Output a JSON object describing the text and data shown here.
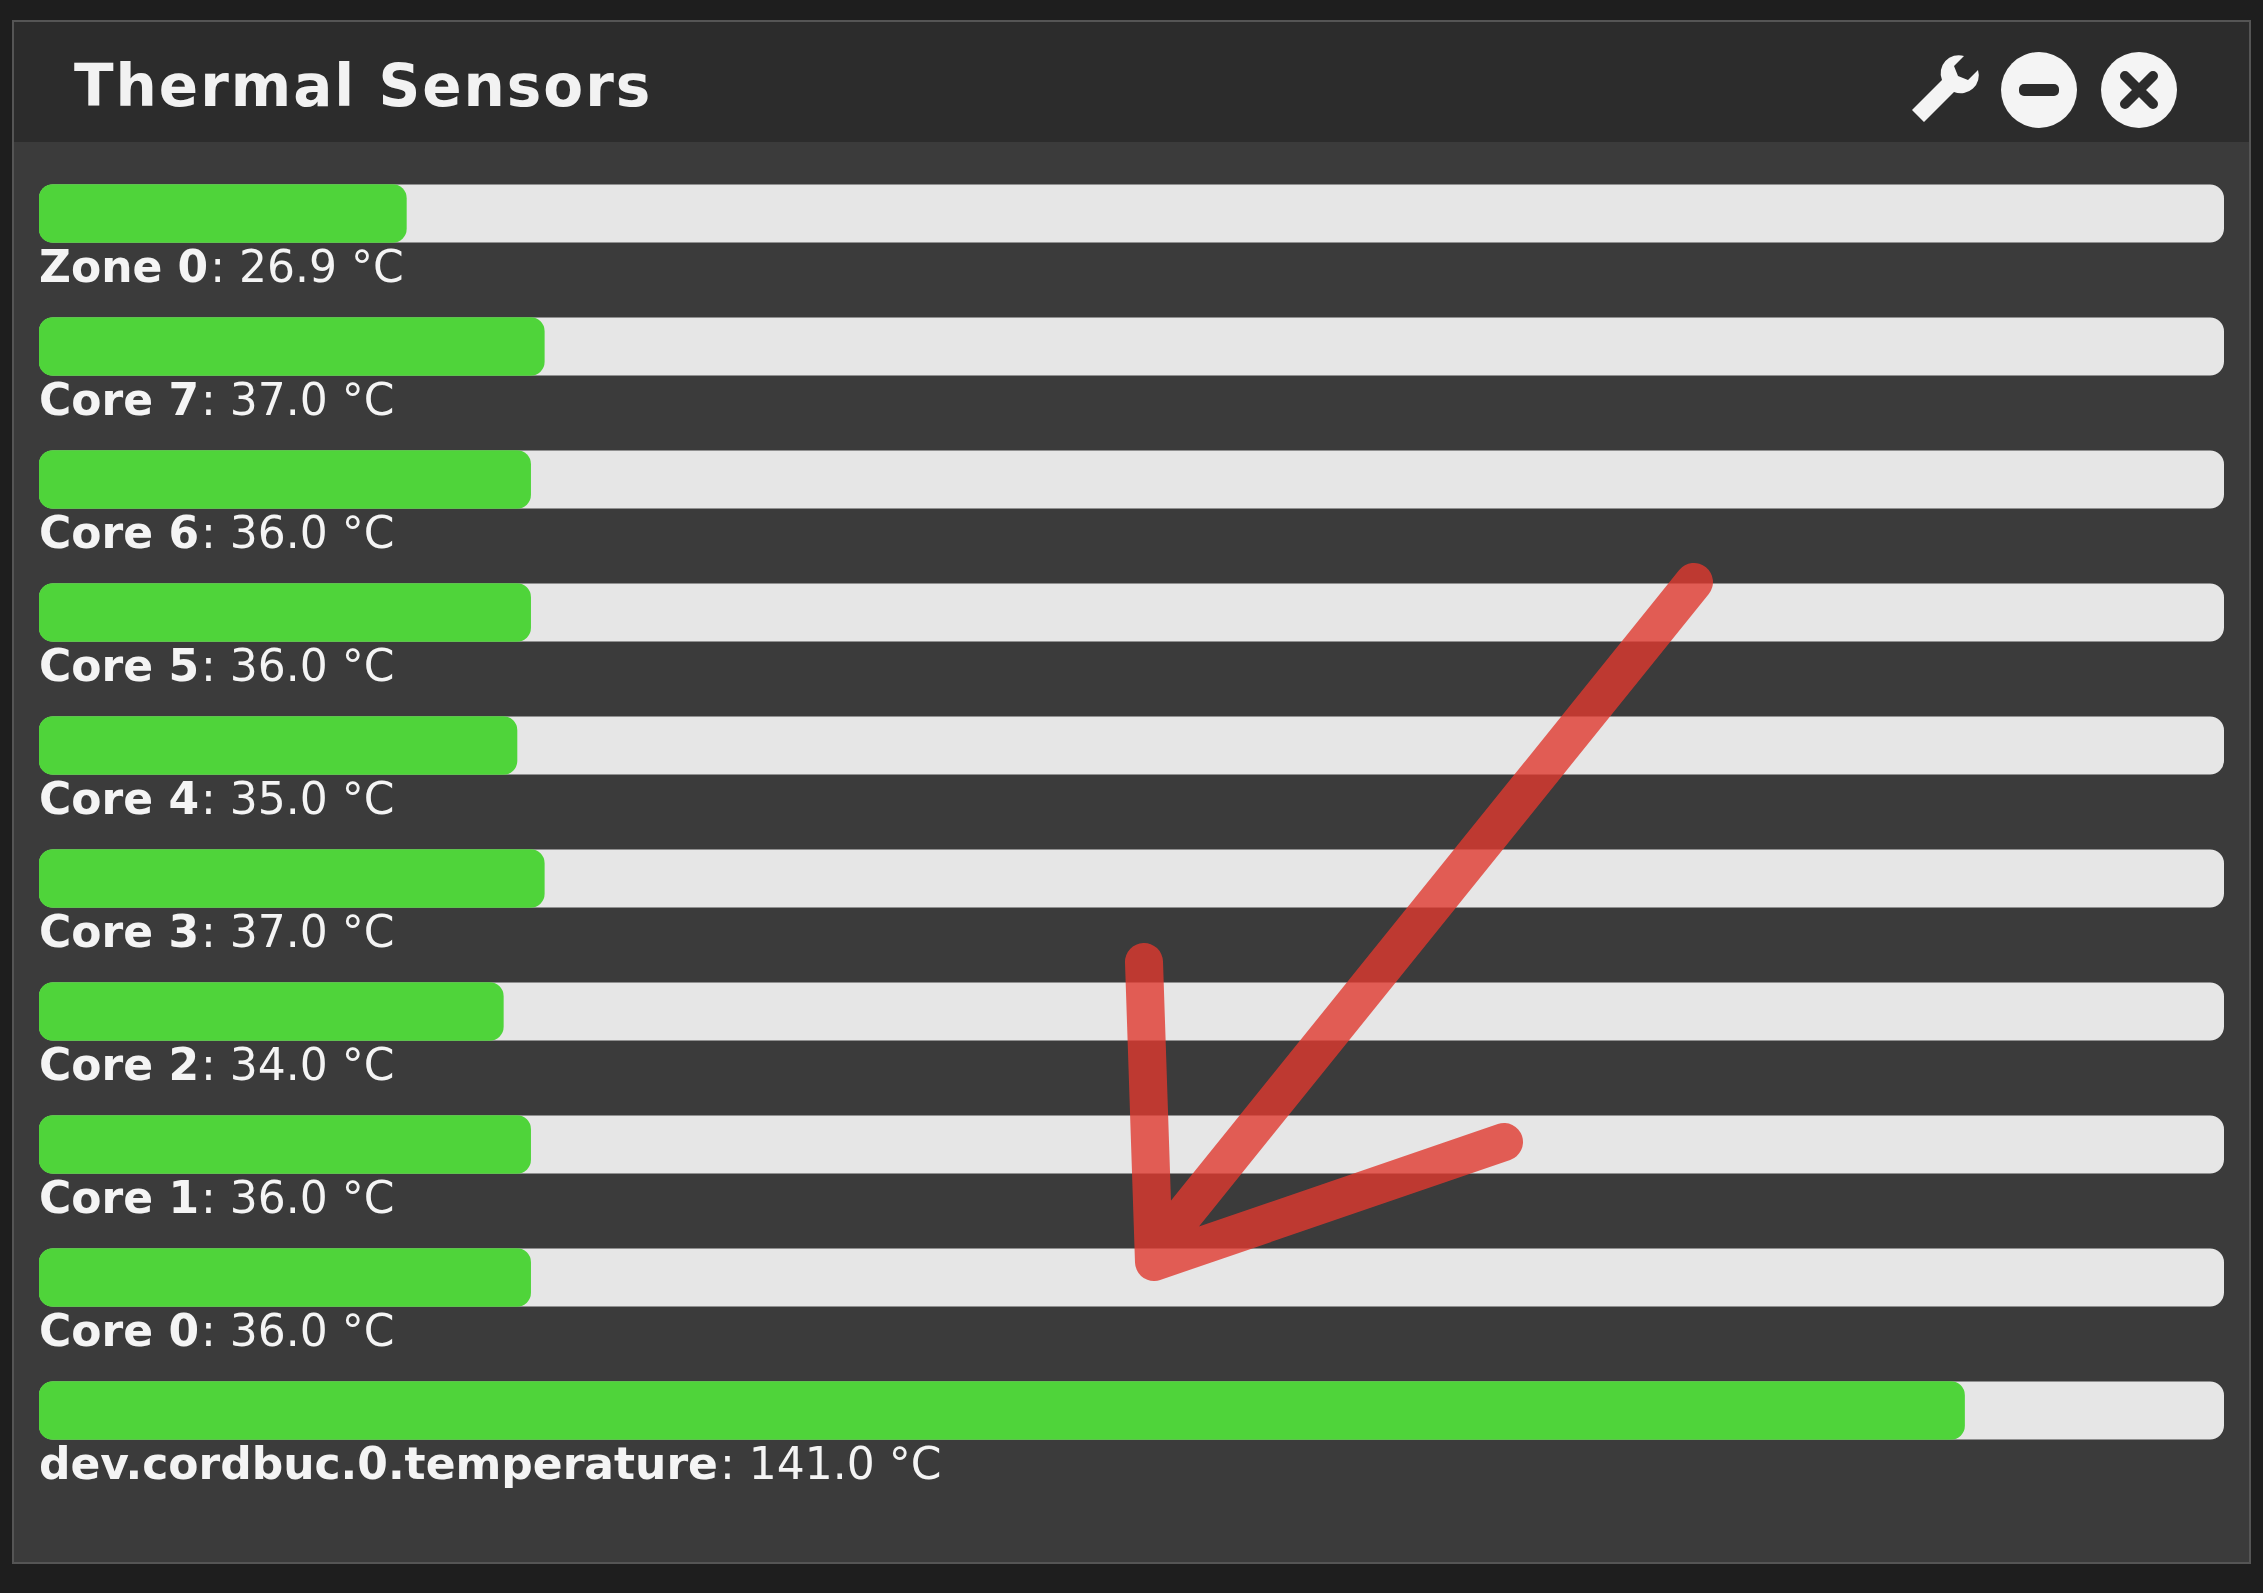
{
  "chart_data": {
    "type": "bar",
    "orientation": "horizontal",
    "title": "Thermal Sensors",
    "categories": [
      "Zone 0",
      "Core 7",
      "Core 6",
      "Core 5",
      "Core 4",
      "Core 3",
      "Core 2",
      "Core 1",
      "Core 0",
      "dev.cordbuc.0.temperature"
    ],
    "values": [
      26.9,
      37.0,
      36.0,
      36.0,
      35.0,
      37.0,
      34.0,
      36.0,
      36.0,
      141.0
    ],
    "value_labels": [
      ": 26.9 °C",
      ": 37.0 °C",
      ": 36.0 °C",
      ": 36.0 °C",
      ": 35.0 °C",
      ": 37.0 °C",
      ": 34.0 °C",
      ": 36.0 °C",
      ": 36.0 °C",
      ": 141.0 °C"
    ],
    "color": "#4fd43a"
  }
}
